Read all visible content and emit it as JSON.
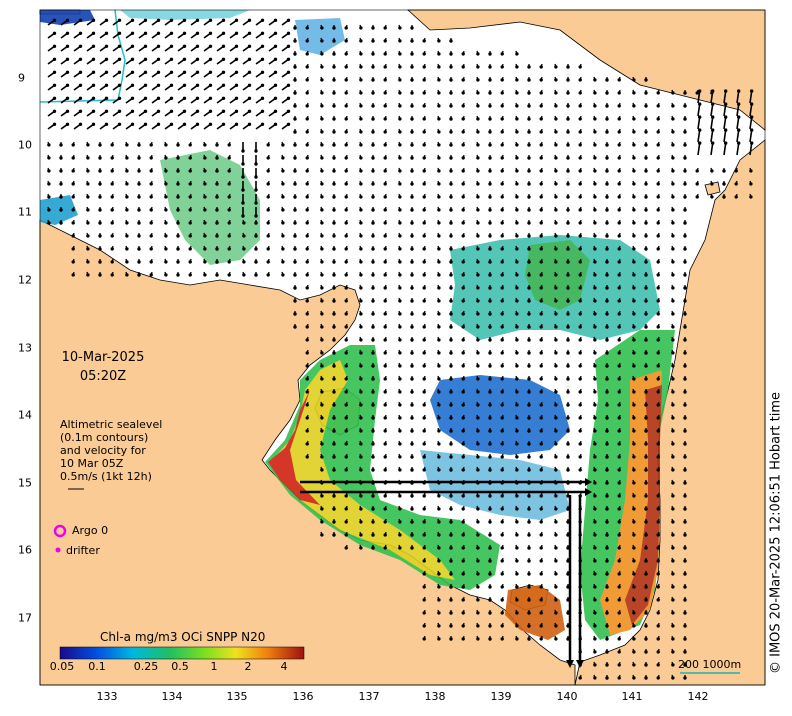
{
  "map": {
    "date": "10-Mar-2025",
    "time": "05:20Z",
    "legend_lines": [
      "Altimetric sealevel",
      "(0.1m contours)",
      "and velocity for",
      "10 Mar 05Z",
      "0.5m/s (1kt 12h)"
    ],
    "argo_label": "Argo 0",
    "drifter_label": "drifter",
    "colorbar_title": "Chl-a mg/m3 OCi SNPP N20",
    "colorbar_ticks": [
      "0.05",
      "0.1",
      "0.25",
      "0.5",
      "1",
      "2",
      "4"
    ],
    "x_ticks": [
      "133",
      "134",
      "135",
      "136",
      "137",
      "138",
      "139",
      "140",
      "141",
      "142"
    ],
    "y_ticks": [
      "9",
      "10",
      "11",
      "12",
      "13",
      "14",
      "15",
      "16",
      "17"
    ],
    "credit": "© IMOS 20-Mar-2025 12:06:51 Hobart time",
    "scale_label": "200  1000m",
    "colors": {
      "land": "#fbcb96",
      "sea": "#ffffff",
      "argo": "#ee00ee",
      "scale": "#20b2aa",
      "contour": "#20c0d0"
    }
  }
}
